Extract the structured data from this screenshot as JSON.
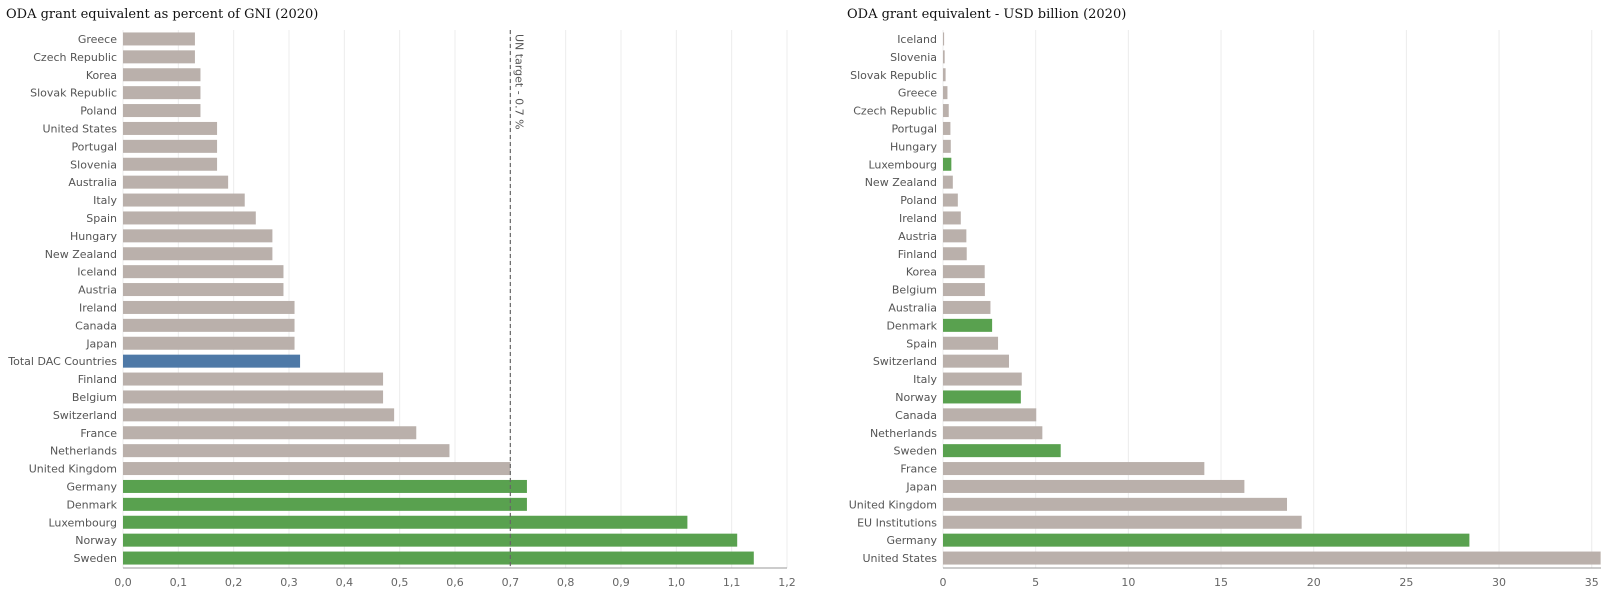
{
  "colors": {
    "default": "#bab0ab",
    "highlight": "#59a14f",
    "total": "#4e79a7"
  },
  "chart_data": [
    {
      "type": "bar",
      "orientation": "horizontal",
      "title": "ODA grant equivalent as percent of GNI (2020)",
      "xlim": [
        0,
        1.2
      ],
      "ticks": [
        0.0,
        0.1,
        0.2,
        0.3,
        0.4,
        0.5,
        0.6,
        0.7,
        0.8,
        0.9,
        1.0,
        1.1,
        1.2
      ],
      "tick_labels": [
        "0,0",
        "0,1",
        "0,2",
        "0,3",
        "0,4",
        "0,5",
        "0,6",
        "0,7",
        "0,8",
        "0,9",
        "1,0",
        "1,1",
        "1,2"
      ],
      "grid": true,
      "reference_line": {
        "value": 0.7,
        "label": "UN target - 0.7 %"
      },
      "categories": [
        "Greece",
        "Czech Republic",
        "Korea",
        "Slovak Republic",
        "Poland",
        "United States",
        "Portugal",
        "Slovenia",
        "Australia",
        "Italy",
        "Spain",
        "Hungary",
        "New Zealand",
        "Iceland",
        "Austria",
        "Ireland",
        "Canada",
        "Japan",
        "Total DAC Countries",
        "Finland",
        "Belgium",
        "Switzerland",
        "France",
        "Netherlands",
        "United Kingdom",
        "Germany",
        "Denmark",
        "Luxembourg",
        "Norway",
        "Sweden"
      ],
      "values": [
        0.13,
        0.13,
        0.14,
        0.14,
        0.14,
        0.17,
        0.17,
        0.17,
        0.19,
        0.22,
        0.24,
        0.27,
        0.27,
        0.29,
        0.29,
        0.31,
        0.31,
        0.31,
        0.32,
        0.47,
        0.47,
        0.49,
        0.53,
        0.59,
        0.7,
        0.73,
        0.73,
        1.02,
        1.11,
        1.14
      ],
      "bar_colors": [
        "default",
        "default",
        "default",
        "default",
        "default",
        "default",
        "default",
        "default",
        "default",
        "default",
        "default",
        "default",
        "default",
        "default",
        "default",
        "default",
        "default",
        "default",
        "total",
        "default",
        "default",
        "default",
        "default",
        "default",
        "default",
        "highlight",
        "highlight",
        "highlight",
        "highlight",
        "highlight"
      ]
    },
    {
      "type": "bar",
      "orientation": "horizontal",
      "title": "ODA grant equivalent - USD billion (2020)",
      "xlim": [
        0,
        35.5
      ],
      "ticks": [
        0,
        5,
        10,
        15,
        20,
        25,
        30,
        35
      ],
      "tick_labels": [
        "0",
        "5",
        "10",
        "15",
        "20",
        "25",
        "30",
        "35"
      ],
      "grid": true,
      "categories": [
        "Iceland",
        "Slovenia",
        "Slovak Republic",
        "Greece",
        "Czech Republic",
        "Portugal",
        "Hungary",
        "Luxembourg",
        "New Zealand",
        "Poland",
        "Ireland",
        "Austria",
        "Finland",
        "Korea",
        "Belgium",
        "Australia",
        "Denmark",
        "Spain",
        "Switzerland",
        "Italy",
        "Norway",
        "Canada",
        "Netherlands",
        "Sweden",
        "France",
        "Japan",
        "United Kingdom",
        "EU Institutions",
        "Germany",
        "United States"
      ],
      "values": [
        0.06,
        0.09,
        0.14,
        0.24,
        0.31,
        0.4,
        0.42,
        0.45,
        0.53,
        0.8,
        0.96,
        1.26,
        1.28,
        2.25,
        2.26,
        2.56,
        2.65,
        2.97,
        3.56,
        4.25,
        4.2,
        5.03,
        5.36,
        6.35,
        14.1,
        16.26,
        18.56,
        19.35,
        28.4,
        35.48
      ],
      "bar_colors": [
        "default",
        "default",
        "default",
        "default",
        "default",
        "default",
        "default",
        "highlight",
        "default",
        "default",
        "default",
        "default",
        "default",
        "default",
        "default",
        "default",
        "highlight",
        "default",
        "default",
        "default",
        "highlight",
        "default",
        "default",
        "highlight",
        "default",
        "default",
        "default",
        "default",
        "highlight",
        "default"
      ]
    }
  ]
}
